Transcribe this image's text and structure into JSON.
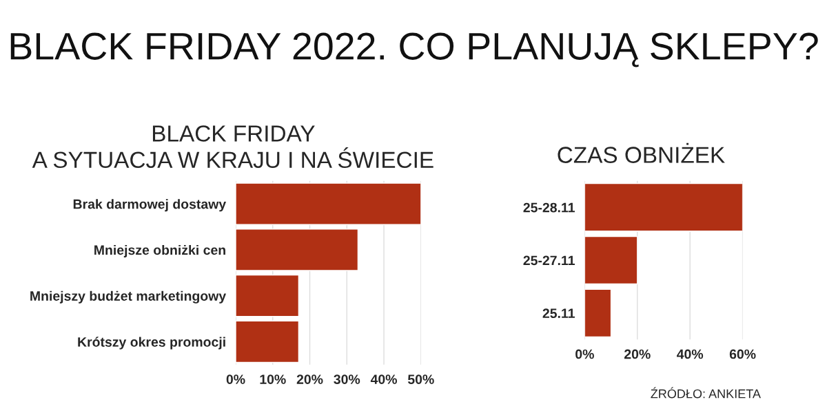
{
  "chart_data": [
    {
      "type": "bar",
      "orientation": "horizontal",
      "title": "BLACK FRIDAY 2022. CO PLANUJĄ SKLEPY?",
      "subtitle": "BLACK FRIDAY\nA SYTUACJA W KRAJU I NA ŚWIECIE",
      "categories": [
        "Brak darmowej dostawy",
        "Mniejsze obniżki cen",
        "Mniejszy budżet marketingowy",
        "Krótszy okres promocji"
      ],
      "values": [
        50,
        33,
        17,
        17
      ],
      "color": "#b03014",
      "xlim": [
        0,
        50
      ],
      "xticks": [
        {
          "value": 0,
          "label": "0%"
        },
        {
          "value": 10,
          "label": "10%"
        },
        {
          "value": 20,
          "label": "20%"
        },
        {
          "value": 30,
          "label": "30%"
        },
        {
          "value": 40,
          "label": "40%"
        },
        {
          "value": 50,
          "label": "50%"
        }
      ],
      "grid": "x"
    },
    {
      "type": "bar",
      "orientation": "horizontal",
      "title": "CZAS OBNIŻEK",
      "categories": [
        "25-28.11",
        "25-27.11",
        "25.11"
      ],
      "values": [
        60,
        20,
        10
      ],
      "color": "#b03014",
      "xlim": [
        0,
        60
      ],
      "xticks": [
        {
          "value": 0,
          "label": "0%"
        },
        {
          "value": 20,
          "label": "20%"
        },
        {
          "value": 40,
          "label": "40%"
        },
        {
          "value": 60,
          "label": "60%"
        }
      ],
      "grid": "x",
      "annotations": [
        "ŹRÓDŁO: ANKIETA"
      ]
    }
  ]
}
